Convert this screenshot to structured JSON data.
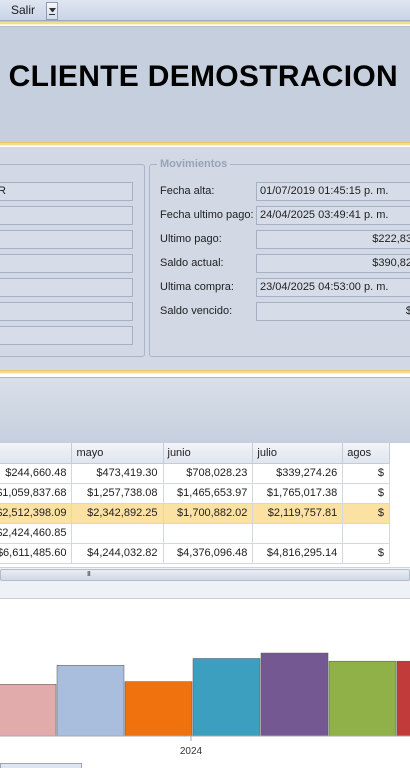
{
  "menu": {
    "salir_label": "Salir"
  },
  "header": {
    "client_name": "CLIENTE DEMOSTRACION"
  },
  "left_fields": {
    "values": [
      "R",
      "",
      "",
      "",
      "",
      "",
      ""
    ]
  },
  "movimientos": {
    "title": "Movimientos",
    "rows": [
      {
        "label": "Fecha alta:",
        "value": "01/07/2019 01:45:15 p. m.",
        "align": "left"
      },
      {
        "label": "Fecha ultimo pago:",
        "value": "24/04/2025 03:49:41 p. m.",
        "align": "left"
      },
      {
        "label": "Ultimo pago:",
        "value": "$222,83",
        "align": "right"
      },
      {
        "label": "Saldo actual:",
        "value": "$390,82",
        "align": "right"
      },
      {
        "label": "Ultima compra:",
        "value": "23/04/2025 04:53:00 p. m.",
        "align": "left"
      },
      {
        "label": "Saldo vencido:",
        "value": "$",
        "align": "right"
      }
    ]
  },
  "grid": {
    "columns": [
      "ril",
      "mayo",
      "junio",
      "julio",
      "agos"
    ],
    "rows": [
      {
        "cells": [
          "$244,660.48",
          "$473,419.30",
          "$708,028.23",
          "$339,274.26",
          "$"
        ],
        "highlight": false
      },
      {
        "cells": [
          "$1,059,837.68",
          "$1,257,738.08",
          "$1,465,653.97",
          "$1,765,017.38",
          "$"
        ],
        "highlight": false
      },
      {
        "cells": [
          "$2,512,398.09",
          "$2,342,892.25",
          "$1,700,882.02",
          "$2,119,757.81",
          "$"
        ],
        "highlight": true
      },
      {
        "cells": [
          "$2,424,460.85",
          "",
          "",
          "",
          ""
        ],
        "highlight": false
      },
      {
        "cells": [
          "$6,611,485.60",
          "$4,244,032.82",
          "$4,376,096.48",
          "$4,816,295.14",
          "$"
        ],
        "highlight": false
      }
    ],
    "scroll_grip": "III"
  },
  "chart_data": {
    "type": "bar",
    "categories": [
      "2024"
    ],
    "x_tick_label": "2024",
    "series": [
      {
        "value": 0.38,
        "color": "#e2abab"
      },
      {
        "value": 0.52,
        "color": "#a9bedc"
      },
      {
        "value": 0.4,
        "color": "#f0720f"
      },
      {
        "value": 0.57,
        "color": "#3c9fc0"
      },
      {
        "value": 0.61,
        "color": "#745891"
      },
      {
        "value": 0.55,
        "color": "#8fb148"
      },
      {
        "value": 0.55,
        "color": "#c23b3b"
      }
    ]
  }
}
